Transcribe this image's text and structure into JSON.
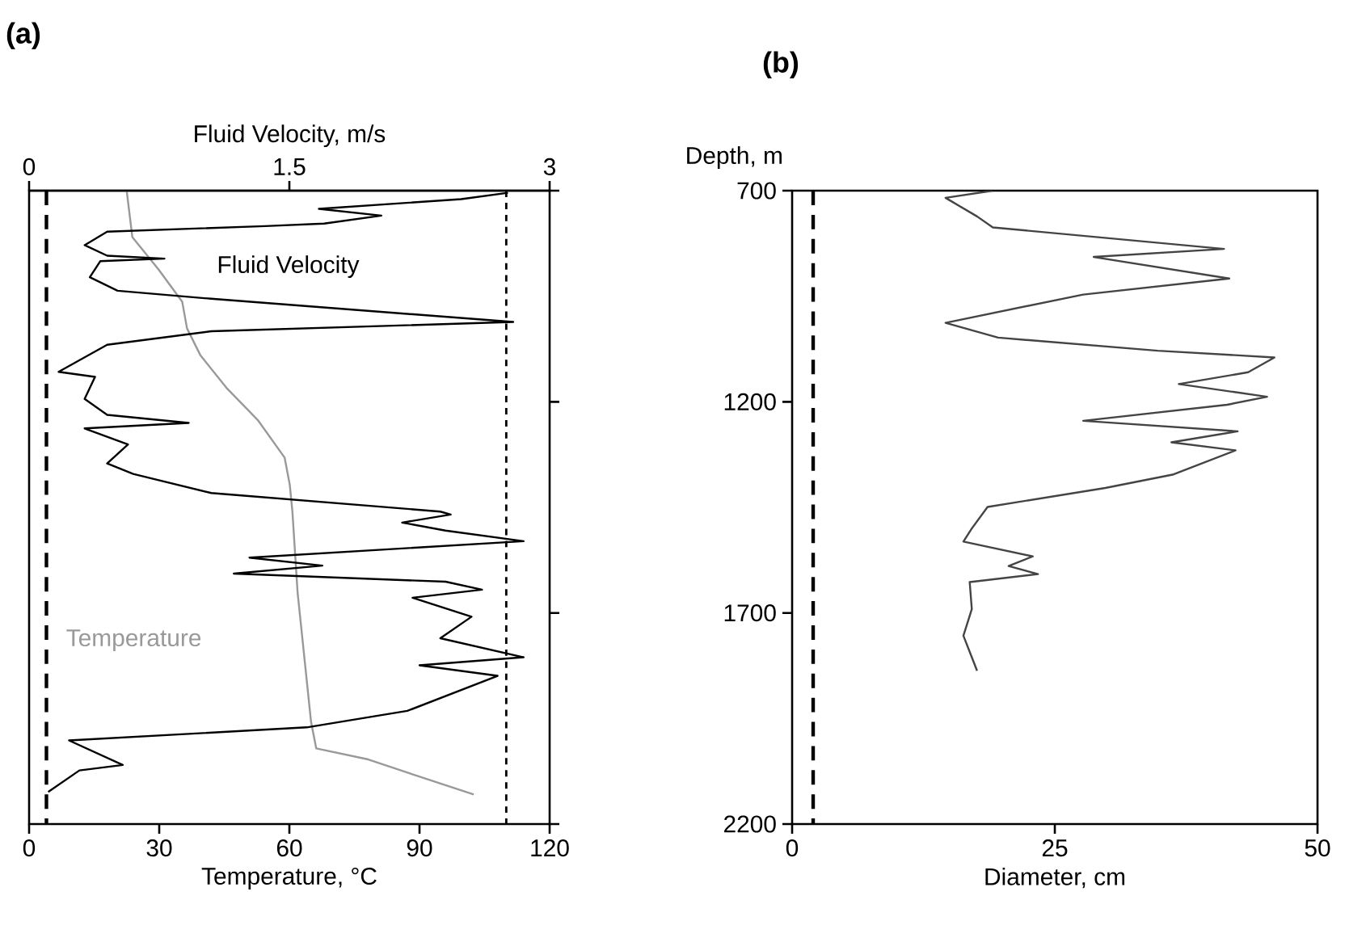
{
  "chart_data": [
    {
      "type": "line",
      "title": "(a)",
      "xlabel": "Temperature, °C",
      "x2label": "Fluid Velocity, m/s",
      "xlim": [
        0,
        120
      ],
      "xticks": [
        0,
        30,
        60,
        90,
        120
      ],
      "x2lim": [
        0,
        3
      ],
      "x2ticks": [
        0,
        1.5,
        3
      ],
      "ylim": [
        2200,
        700
      ],
      "yticks": [
        {
          "value": 700,
          "label": null
        },
        {
          "value": 1200,
          "label": null
        },
        {
          "value": 1700,
          "label": null
        },
        {
          "value": 2200,
          "label": null
        }
      ],
      "tick_labels": "x",
      "series": [
        {
          "name": "Fluid Velocity",
          "color": "#000000",
          "axis": "x2",
          "x": [
            2.76,
            2.49,
            1.67,
            2.03,
            1.7,
            1.36,
            0.45,
            0.32,
            0.45,
            0.78,
            0.41,
            0.35,
            0.51,
            1.05,
            2.79,
            1.05,
            0.45,
            0.17,
            0.38,
            0.32,
            0.45,
            0.92,
            0.32,
            0.57,
            0.45,
            0.6,
            1.05,
            2.37,
            2.43,
            2.15,
            2.4,
            2.85,
            1.27,
            1.69,
            1.18,
            2.4,
            2.61,
            2.21,
            2.55,
            2.37,
            2.85,
            2.25,
            2.7,
            2.18,
            1.6,
            0.23,
            0.54,
            0.29,
            0.11
          ],
          "values": [
            705,
            720,
            743,
            759,
            778,
            784,
            797,
            829,
            854,
            861,
            867,
            905,
            937,
            956,
            1011,
            1033,
            1065,
            1129,
            1141,
            1193,
            1231,
            1250,
            1263,
            1301,
            1346,
            1371,
            1416,
            1460,
            1467,
            1486,
            1505,
            1530,
            1569,
            1588,
            1607,
            1626,
            1645,
            1664,
            1709,
            1760,
            1805,
            1824,
            1849,
            1932,
            1971,
            2002,
            2060,
            2073,
            2124
          ]
        },
        {
          "name": "Temperature",
          "color": "#999999",
          "x": [
            22.5,
            23.8,
            29.8,
            35.3,
            36.4,
            39.5,
            45.5,
            52.7,
            58.9,
            60.1,
            60.7,
            61.9,
            65,
            66.2,
            78.2,
            89.2,
            102.5
          ],
          "values": [
            700,
            810,
            886,
            963,
            1026,
            1090,
            1167,
            1243,
            1332,
            1397,
            1460,
            1652,
            1958,
            2021,
            2047,
            2085,
            2130
          ]
        }
      ],
      "ref_lines": [
        {
          "axis": "x",
          "value": 4,
          "line_style": "dashed",
          "color": "#000000"
        },
        {
          "axis": "x",
          "value": 110,
          "line_style": "dotted",
          "color": "#000000"
        }
      ]
    },
    {
      "type": "line",
      "title": "(b)",
      "xlabel": "Diameter, cm",
      "ylabel": "Depth, m",
      "xlim": [
        0,
        50
      ],
      "xticks": [
        0,
        25,
        50
      ],
      "ylim": [
        2200,
        700
      ],
      "yticks": [
        700,
        1200,
        1700,
        2200
      ],
      "series": [
        {
          "color": "#444444",
          "x": [
            19.1,
            14.6,
            17.6,
            19.1,
            41.1,
            28.7,
            41.6,
            27.7,
            14.6,
            19.6,
            34.8,
            45.9,
            43.4,
            36.8,
            45.2,
            41.4,
            27.7,
            42.4,
            36.1,
            42.2,
            36.3,
            29.8,
            18.6,
            17.1,
            16.3,
            22.9,
            20.6,
            23.4,
            16.9,
            17.1,
            16.3,
            17.1,
            17.6
          ],
          "values": [
            700,
            717,
            761,
            787,
            838,
            857,
            908,
            946,
            1013,
            1048,
            1079,
            1095,
            1130,
            1158,
            1188,
            1207,
            1245,
            1270,
            1296,
            1315,
            1372,
            1404,
            1449,
            1500,
            1531,
            1566,
            1589,
            1608,
            1627,
            1691,
            1754,
            1805,
            1837
          ]
        }
      ],
      "ref_lines": [
        {
          "axis": "x",
          "value": 2,
          "line_style": "dashed",
          "color": "#000000"
        }
      ]
    }
  ]
}
